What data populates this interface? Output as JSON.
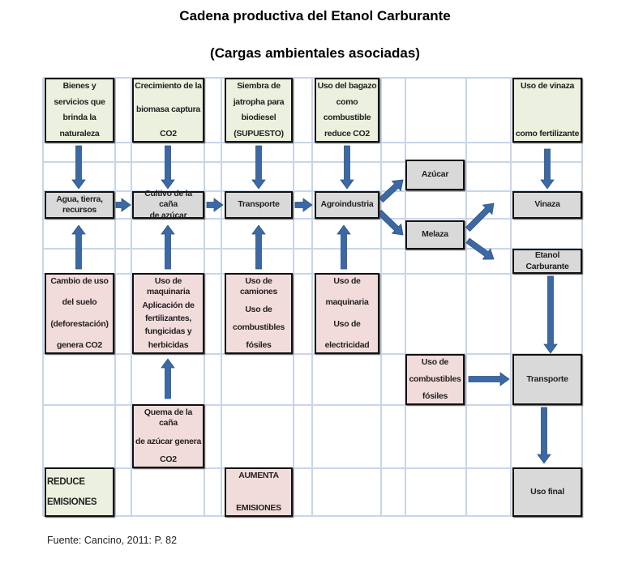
{
  "title": "Cadena productiva del Etanol Carburante",
  "subtitle": "(Cargas ambientales asociadas)",
  "colors": {
    "reduce": "#ebf1de",
    "aumenta": "#f2dcdb",
    "process": "#d9d9d9",
    "arrow": "#3c69a4",
    "grid": "#c9d5ea"
  },
  "boxes": {
    "bienes": {
      "lines": [
        "Bienes y",
        "servicios que",
        "brinda la",
        "naturaleza"
      ]
    },
    "crecimiento": {
      "lines": [
        "Crecimiento de la",
        "biomasa captura",
        "CO2"
      ]
    },
    "siembra": {
      "lines": [
        "Siembra de",
        "jatropha para",
        "biodiesel",
        "(SUPUESTO)"
      ]
    },
    "bagazo": {
      "lines": [
        "Uso del bagazo",
        "como",
        "combustible",
        "reduce CO2"
      ]
    },
    "vinaza_uso": {
      "lines": [
        "Uso de vinaza",
        "como fertilizante"
      ]
    },
    "agua": {
      "lines": [
        "Agua, tierra,",
        "recursos"
      ]
    },
    "cultivo": {
      "lines": [
        "Cultivo de la caña",
        "de azúcar"
      ]
    },
    "transporte1": {
      "lines": [
        "Transporte"
      ]
    },
    "agroindustria": {
      "lines": [
        "Agroindustria"
      ]
    },
    "azucar": {
      "lines": [
        "Azúcar"
      ]
    },
    "melaza": {
      "lines": [
        "Melaza"
      ]
    },
    "vinaza": {
      "lines": [
        "Vinaza"
      ]
    },
    "etanol": {
      "lines": [
        "Etanol Carburante"
      ]
    },
    "cambio_uso": {
      "lines": [
        "Cambio de uso",
        "del suelo",
        "(deforestación)",
        "genera CO2"
      ]
    },
    "maquinaria": {
      "lines": [
        "Uso de maquinaria",
        "Aplicación de",
        "fertilizantes,",
        "fungicidas y",
        "herbicidas"
      ]
    },
    "camiones": {
      "lines": [
        "Uso de camiones",
        "Uso de",
        "combustibles",
        "fósiles"
      ]
    },
    "maquinaria_elec": {
      "lines": [
        "Uso de",
        "maquinaria",
        "Uso de",
        "electricidad"
      ]
    },
    "combustibles": {
      "lines": [
        "Uso de",
        "combustibles",
        "fósiles"
      ]
    },
    "transporte2": {
      "lines": [
        "Transporte"
      ]
    },
    "quema": {
      "lines": [
        "Quema de la caña",
        "de azúcar genera",
        "CO2"
      ]
    },
    "reduce": {
      "lines": [
        "REDUCE",
        "EMISIONES"
      ]
    },
    "aumenta": {
      "lines": [
        "AUMENTA",
        "EMISIONES"
      ]
    },
    "uso_final": {
      "lines": [
        "Uso final"
      ]
    }
  },
  "source": "Fuente: Cancino, 2011: P. 82"
}
